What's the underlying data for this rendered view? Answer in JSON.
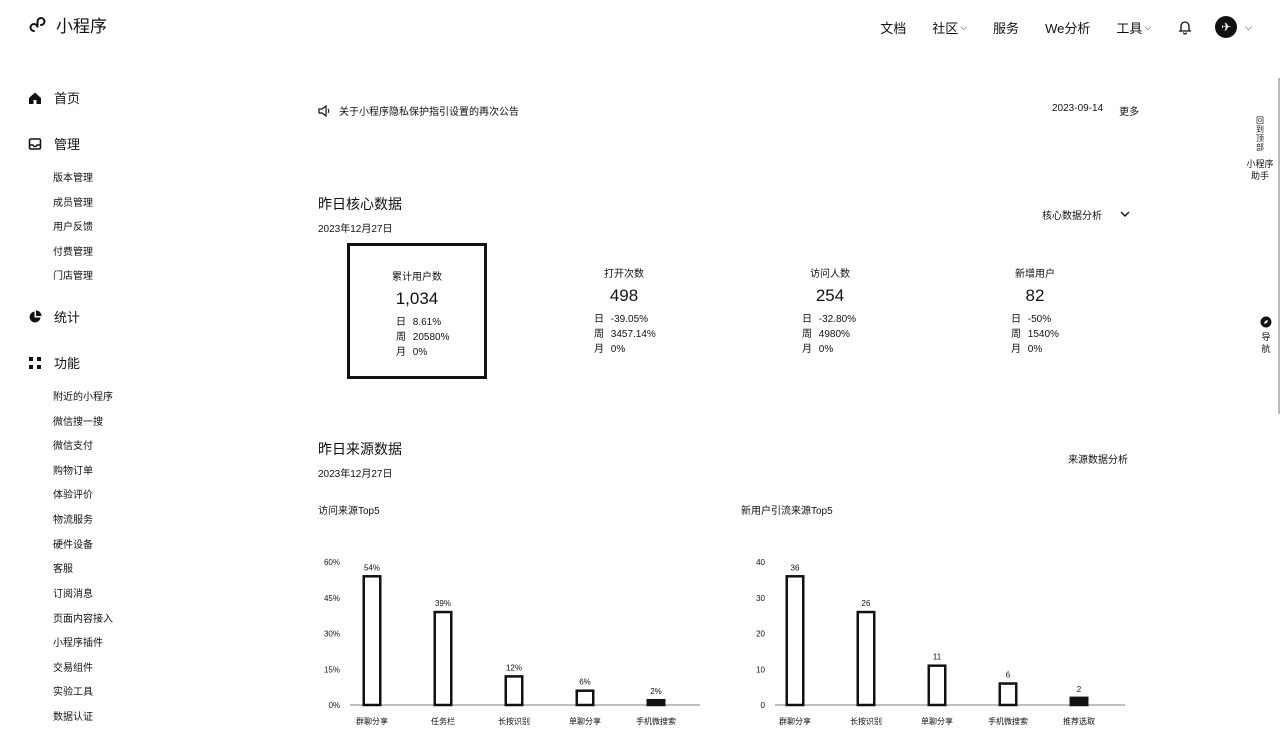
{
  "header": {
    "app_title": "小程序",
    "nav": [
      {
        "label": "文档",
        "has_caret": false
      },
      {
        "label": "社区",
        "has_caret": true
      },
      {
        "label": "服务",
        "has_caret": false
      },
      {
        "label": "We分析",
        "has_caret": false
      },
      {
        "label": "工具",
        "has_caret": true
      }
    ],
    "icons": [
      "bell-icon",
      "avatar-icon",
      "chevron-down-icon"
    ]
  },
  "sidebar": {
    "home": "首页",
    "manage": "管理",
    "manage_items": [
      "版本管理",
      "成员管理",
      "用户反馈",
      "付费管理",
      "门店管理"
    ],
    "stats": "统计",
    "features": "功能",
    "feature_items": [
      "附近的小程序",
      "微信搜一搜",
      "微信支付",
      "购物订单",
      "体验评价",
      "物流服务",
      "硬件设备",
      "客服",
      "订阅消息",
      "页面内容接入",
      "小程序插件",
      "交易组件",
      "实验工具",
      "数据认证"
    ]
  },
  "notice": {
    "text": "关于小程序隐私保护指引设置的再次公告",
    "date": "2023-09-14",
    "more": "更多"
  },
  "core": {
    "title": "昨日核心数据",
    "date": "2023年12月27日",
    "analysis": "核心数据分析",
    "cards": [
      {
        "label": "累计用户数",
        "value": "1,034",
        "rows": [
          {
            "k": "日",
            "v": "8.61%"
          },
          {
            "k": "周",
            "v": "20580%"
          },
          {
            "k": "月",
            "v": "0%"
          }
        ]
      },
      {
        "label": "打开次数",
        "value": "498",
        "rows": [
          {
            "k": "日",
            "v": "-39.05%"
          },
          {
            "k": "周",
            "v": "3457.14%"
          },
          {
            "k": "月",
            "v": "0%"
          }
        ]
      },
      {
        "label": "访问人数",
        "value": "254",
        "rows": [
          {
            "k": "日",
            "v": "-32.80%"
          },
          {
            "k": "周",
            "v": "4980%"
          },
          {
            "k": "月",
            "v": "0%"
          }
        ]
      },
      {
        "label": "新增用户",
        "value": "82",
        "rows": [
          {
            "k": "日",
            "v": "-50%"
          },
          {
            "k": "周",
            "v": "1540%"
          },
          {
            "k": "月",
            "v": "0%"
          }
        ]
      }
    ]
  },
  "source": {
    "title": "昨日来源数据",
    "date": "2023年12月27日",
    "analysis": "来源数据分析"
  },
  "chart_data": [
    {
      "type": "bar",
      "title": "访问来源Top5",
      "categories": [
        "群聊分享",
        "任务栏",
        "长按识别",
        "单聊分享",
        "手机微搜索"
      ],
      "values": [
        54,
        39,
        12,
        6,
        2
      ],
      "value_labels": [
        "54%",
        "39%",
        "12%",
        "6%",
        "2%"
      ],
      "ylim": [
        0,
        60
      ],
      "yticks": [
        "0%",
        "15%",
        "30%",
        "45%",
        "60%"
      ]
    },
    {
      "type": "bar",
      "title": "新用户引流来源Top5",
      "categories": [
        "群聊分享",
        "长按识别",
        "单聊分享",
        "手机微搜索",
        "推荐选取"
      ],
      "values": [
        36,
        26,
        11,
        6,
        2
      ],
      "value_labels": [
        "36",
        "26",
        "11",
        "6",
        "2"
      ],
      "ylim": [
        0,
        40
      ],
      "yticks": [
        "0",
        "10",
        "20",
        "30",
        "40"
      ]
    }
  ],
  "float_tools": {
    "feedback": "回到顶部",
    "assistant": "小程序助手",
    "nav": "导航"
  }
}
